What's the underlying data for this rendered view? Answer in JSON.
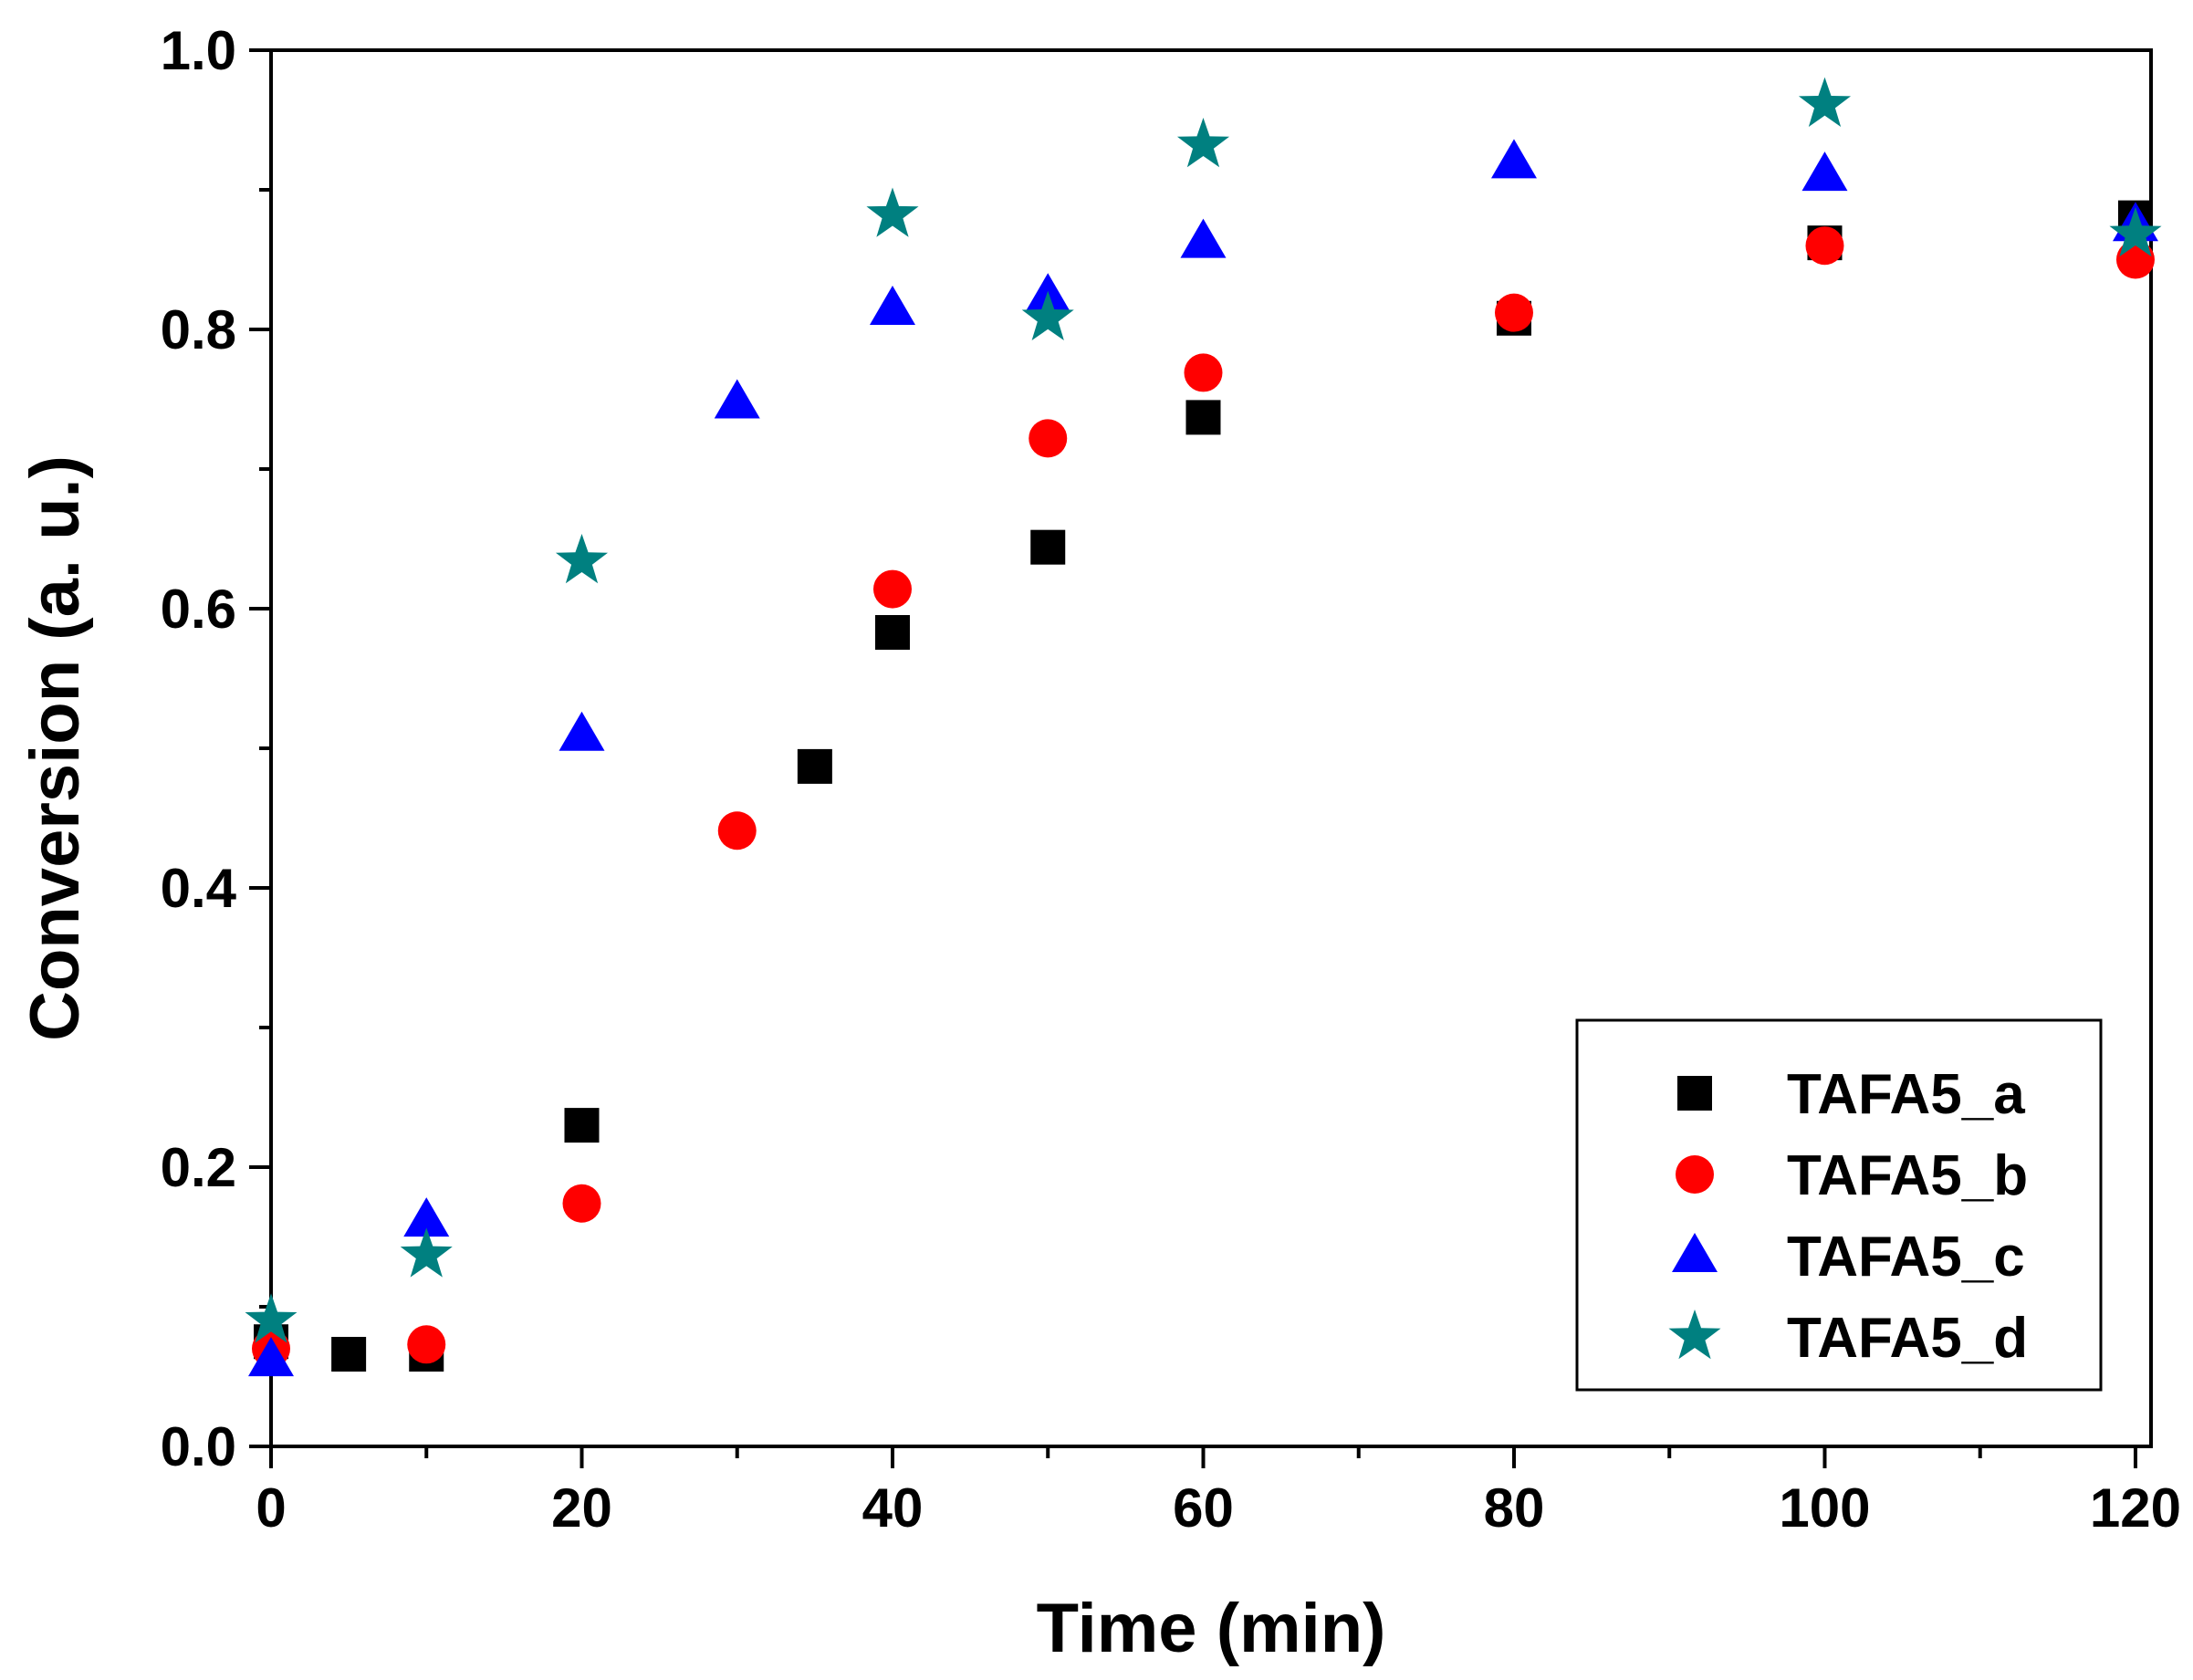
{
  "chart_data": {
    "type": "scatter",
    "title": "",
    "xlabel": "Time (min)",
    "ylabel": "Conversion (a. u.)",
    "xlim": [
      0,
      121
    ],
    "ylim": [
      0,
      1.0
    ],
    "xticks": [
      0,
      20,
      40,
      60,
      80,
      100,
      120
    ],
    "xtick_labels": [
      "0",
      "20",
      "40",
      "60",
      "80",
      "100",
      "120"
    ],
    "yticks": [
      0.0,
      0.2,
      0.4,
      0.6,
      0.8,
      1.0
    ],
    "ytick_labels": [
      "0.0",
      "0.2",
      "0.4",
      "0.6",
      "0.8",
      "1.0"
    ],
    "x_minor_step": 10,
    "y_minor_step": 0.1,
    "grid": false,
    "legend_position": "bottom-right",
    "series": [
      {
        "name": "TAFA5_a",
        "marker": "square",
        "color": "#000000",
        "x": [
          0,
          5,
          10,
          20,
          35,
          40,
          50,
          60,
          80,
          100,
          120
        ],
        "y": [
          0.075,
          0.066,
          0.066,
          0.23,
          0.487,
          0.583,
          0.644,
          0.737,
          0.808,
          0.862,
          0.88
        ]
      },
      {
        "name": "TAFA5_b",
        "marker": "circle",
        "color": "#ff0000",
        "x": [
          0,
          10,
          20,
          30,
          40,
          50,
          60,
          80,
          100,
          120
        ],
        "y": [
          0.07,
          0.073,
          0.174,
          0.441,
          0.614,
          0.722,
          0.769,
          0.812,
          0.86,
          0.85
        ]
      },
      {
        "name": "TAFA5_c",
        "marker": "triangle",
        "color": "#0000ff",
        "x": [
          0,
          10,
          20,
          30,
          40,
          50,
          60,
          80,
          100,
          120
        ],
        "y": [
          0.062,
          0.162,
          0.51,
          0.748,
          0.815,
          0.824,
          0.863,
          0.92,
          0.911,
          0.875
        ]
      },
      {
        "name": "TAFA5_d",
        "marker": "star",
        "color": "#008080",
        "x": [
          0,
          10,
          20,
          40,
          50,
          60,
          100,
          120
        ],
        "y": [
          0.09,
          0.137,
          0.634,
          0.882,
          0.808,
          0.932,
          0.961,
          0.868
        ]
      }
    ]
  }
}
